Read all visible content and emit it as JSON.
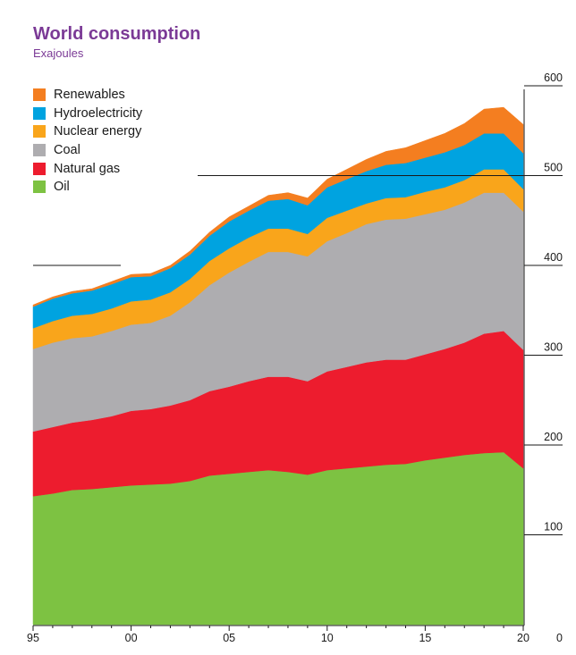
{
  "chart_data": {
    "type": "area",
    "stacked": true,
    "title": "World consumption",
    "subtitle": "Exajoules",
    "xlabel": "",
    "ylabel": "Exajoules",
    "xlim": [
      1995,
      2020
    ],
    "ylim": [
      0,
      600
    ],
    "x": [
      1995,
      1996,
      1997,
      1998,
      1999,
      2000,
      2001,
      2002,
      2003,
      2004,
      2005,
      2006,
      2007,
      2008,
      2009,
      2010,
      2011,
      2012,
      2013,
      2014,
      2015,
      2016,
      2017,
      2018,
      2019,
      2020
    ],
    "x_tick_labels": [
      "95",
      "00",
      "05",
      "10",
      "15",
      "20"
    ],
    "x_tick_values": [
      1995,
      2000,
      2005,
      2010,
      2015,
      2020
    ],
    "y_tick_labels": [
      "0",
      "100",
      "200",
      "300",
      "400",
      "500",
      "600"
    ],
    "y_tick_values": [
      0,
      100,
      200,
      300,
      400,
      500,
      600
    ],
    "series": [
      {
        "name": "Oil",
        "color": "#7dc242",
        "values": [
          143,
          146,
          150,
          151,
          153,
          155,
          156,
          157,
          160,
          166,
          168,
          170,
          172,
          170,
          167,
          172,
          174,
          176,
          178,
          179,
          183,
          186,
          189,
          191,
          192,
          174
        ]
      },
      {
        "name": "Natural gas",
        "color": "#ed1c2e",
        "values": [
          72,
          74,
          75,
          77,
          79,
          83,
          84,
          87,
          90,
          94,
          97,
          101,
          104,
          106,
          104,
          110,
          113,
          116,
          117,
          116,
          118,
          121,
          125,
          133,
          135,
          132
        ]
      },
      {
        "name": "Coal",
        "color": "#aeadb0",
        "values": [
          92,
          94,
          94,
          93,
          95,
          96,
          96,
          100,
          109,
          118,
          127,
          133,
          139,
          139,
          139,
          145,
          149,
          154,
          156,
          157,
          156,
          155,
          156,
          157,
          154,
          154
        ]
      },
      {
        "name": "Nuclear energy",
        "color": "#f9a51b",
        "values": [
          23,
          24,
          25,
          25,
          25,
          26,
          26,
          26,
          26,
          27,
          27,
          27,
          26,
          26,
          25,
          26,
          25,
          23,
          24,
          24,
          25,
          25,
          25,
          26,
          26,
          25
        ]
      },
      {
        "name": "Hydroelectricity",
        "color": "#00a3e0",
        "values": [
          24,
          25,
          25,
          26,
          27,
          27,
          26,
          27,
          27,
          28,
          30,
          30,
          31,
          33,
          32,
          34,
          35,
          36,
          37,
          38,
          38,
          39,
          39,
          40,
          40,
          40
        ]
      },
      {
        "name": "Renewables",
        "color": "#f47e20",
        "values": [
          2,
          2,
          2,
          2,
          3,
          3,
          3,
          3,
          4,
          4,
          5,
          5,
          6,
          7,
          8,
          9,
          11,
          13,
          15,
          17,
          19,
          21,
          24,
          27,
          29,
          32
        ]
      }
    ],
    "legend_order": [
      "Renewables",
      "Hydroelectricity",
      "Nuclear energy",
      "Coal",
      "Natural gas",
      "Oil"
    ],
    "legend_position": "top-left",
    "grid": false
  }
}
